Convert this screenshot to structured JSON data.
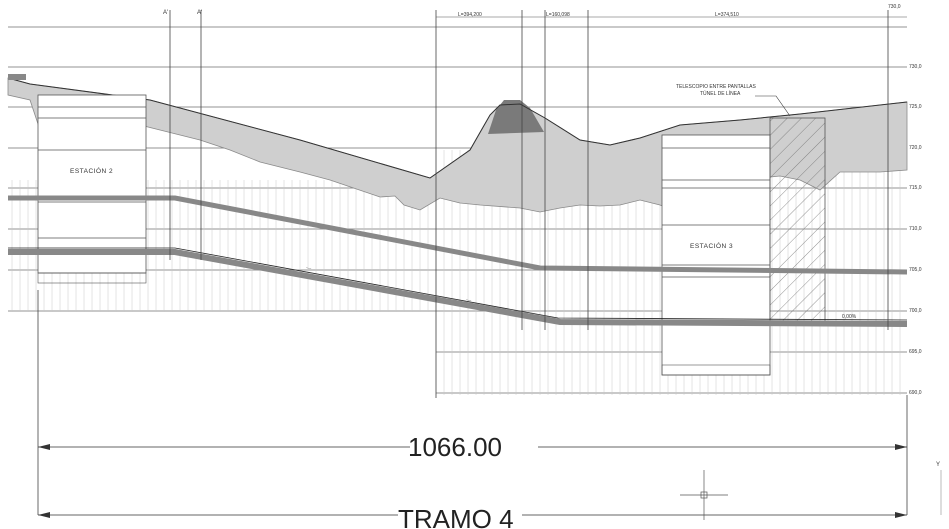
{
  "header": {
    "section_markers": [
      "A'",
      "A'"
    ],
    "stationing": [
      "L=394,200",
      "L=160,098",
      "L=374,510"
    ],
    "top_elevation_label": "730,0"
  },
  "elevation_ticks": [
    "730,0",
    "725,0",
    "720,0",
    "715,0",
    "710,0",
    "705,0",
    "700,0",
    "695,0",
    "690,0"
  ],
  "annotations": {
    "telescopio": "TELESCOPIO ENTRE PANTALLAS",
    "tunel": "TÚNEL DE LÍNEA",
    "estacion2": "ESTACIÓN 2",
    "estacion3": "ESTACIÓN 3",
    "slope_end": "0,00%"
  },
  "dimension": {
    "length": "1066.00",
    "tramo": "TRAMO 4"
  },
  "axis_icon": "ucs-y-axis-icon"
}
